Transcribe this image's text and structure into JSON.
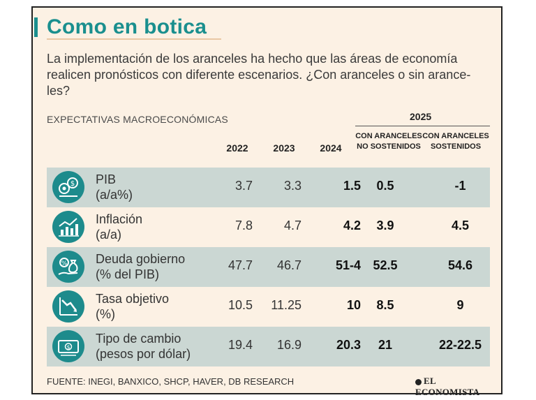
{
  "title": "Como en botica",
  "intro": "La implementación de los aranceles ha hecho que las áreas de economía realicen pronósticos con diferente escenarios. ¿Con aranceles o sin arance-les?",
  "section_label": "EXPECTATIVAS MACROECONÓMICAS",
  "group_header": "2025",
  "columns": {
    "y2022": "2022",
    "y2023": "2023",
    "y2024": "2024",
    "no_sost": "CON ARANCELES NO SOSTENIDOS",
    "sost": "CON ARANCELES SOSTENIDOS"
  },
  "rows": [
    {
      "label1": "PIB",
      "label2": "(a/a%)",
      "icon": "gears-coin-icon",
      "y2022": "3.7",
      "y2023": "3.3",
      "y2024": "1.5",
      "no_sost": "0.5",
      "sost": "-1"
    },
    {
      "label1": "Inflación",
      "label2": "(a/a)",
      "icon": "bar-chart-up-icon",
      "y2022": "7.8",
      "y2023": "4.7",
      "y2024": "4.2",
      "no_sost": "3.9",
      "sost": "4.5"
    },
    {
      "label1": "Deuda gobierno",
      "label2": "(% del PIB)",
      "icon": "money-bag-hand-icon",
      "y2022": "47.7",
      "y2023": "46.7",
      "y2024": "51-4",
      "no_sost": "52.5",
      "sost": "54.6"
    },
    {
      "label1": "Tasa objetivo",
      "label2": "(%)",
      "icon": "chart-down-icon",
      "y2022": "10.5",
      "y2023": "11.25",
      "y2024": "10",
      "no_sost": "8.5",
      "sost": "9"
    },
    {
      "label1": "Tipo de cambio",
      "label2": "(pesos por dólar)",
      "icon": "banknote-icon",
      "y2022": "19.4",
      "y2023": "16.9",
      "y2024": "20.3",
      "no_sost": "21",
      "sost": "22-22.5"
    }
  ],
  "source": "FUENTE: INEGI, BANXICO, SHCP, HAVER, DB RESEARCH",
  "logo": "EL ECONOMISTA",
  "colors": {
    "accent": "#1a8f8e",
    "background": "#fcf1e4",
    "row_shade": "#cbd7d3"
  }
}
